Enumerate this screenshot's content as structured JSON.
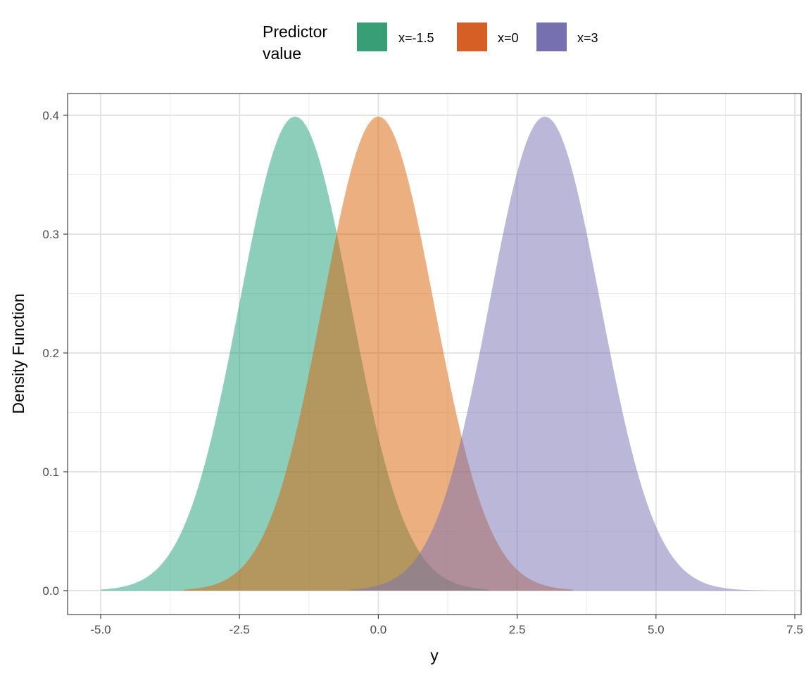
{
  "chart_data": {
    "type": "area",
    "xlabel": "y",
    "ylabel": "Density Function",
    "xlim": [
      -5.0,
      7.5
    ],
    "ylim": [
      0.0,
      0.4
    ],
    "x_ticks": [
      "-5.0",
      "-2.5",
      "0.0",
      "2.5",
      "5.0",
      "7.5"
    ],
    "y_ticks": [
      "0.0",
      "0.1",
      "0.2",
      "0.3",
      "0.4"
    ],
    "grid": true,
    "legend": {
      "title_lines": [
        "Predictor",
        "value"
      ],
      "position": "top"
    },
    "series": [
      {
        "name": "x=-1.5",
        "distribution": "normal",
        "mean": -1.5,
        "sd": 1,
        "x_range": [
          -5.0,
          2.0
        ],
        "peak": 0.399,
        "color": "#1b9e77"
      },
      {
        "name": "x=0",
        "distribution": "normal",
        "mean": 0.0,
        "sd": 1,
        "x_range": [
          -3.5,
          3.5
        ],
        "peak": 0.399,
        "color": "#d95f02"
      },
      {
        "name": "x=3",
        "distribution": "normal",
        "mean": 3.0,
        "sd": 1,
        "x_range": [
          -0.5,
          7.0
        ],
        "peak": 0.399,
        "color": "#7570b3"
      }
    ],
    "fill_opacity": 0.5,
    "legend_colors": [
      "#379e76",
      "#d55f25",
      "#7670b0"
    ]
  }
}
